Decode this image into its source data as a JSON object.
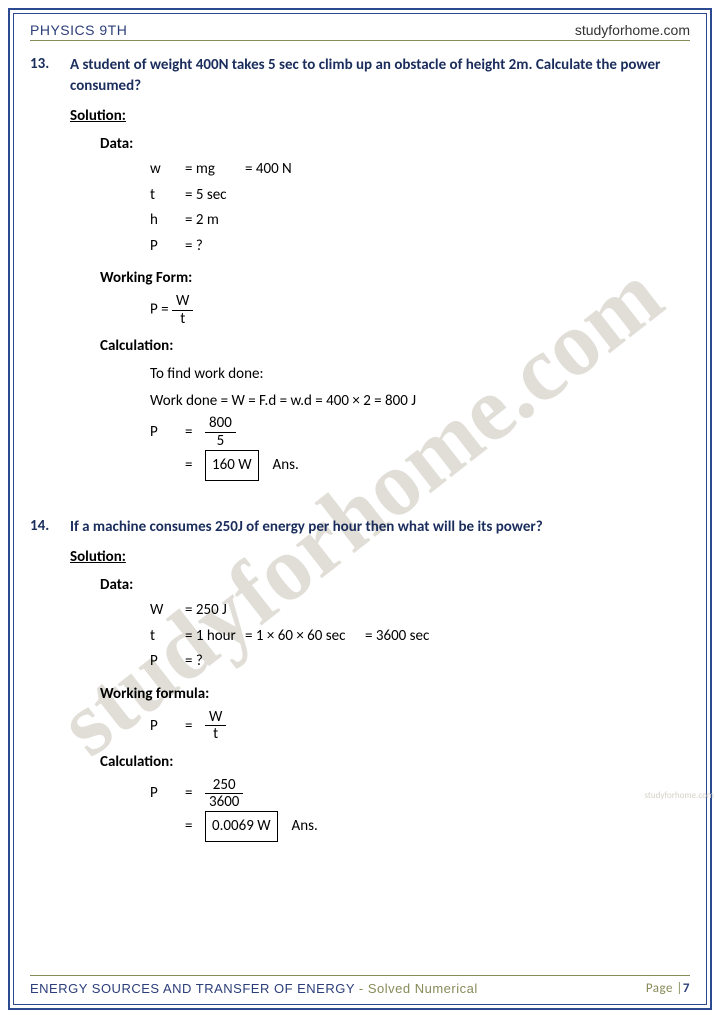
{
  "header": {
    "left": "PHYSICS 9TH",
    "right": "studyforhome.com"
  },
  "watermark": "studyforhome.com",
  "small_watermark": "studyforhome.com",
  "q13": {
    "num": "13.",
    "text": "A student of weight 400N takes 5 sec to climb up an obstacle of height 2m. Calculate the power consumed?",
    "solution_label": "Solution:",
    "data_label": "Data:",
    "data": {
      "r1": {
        "var": "w",
        "eq": "= mg",
        "val": "= 400 N"
      },
      "r2": {
        "var": "t",
        "eq": "= 5 sec"
      },
      "r3": {
        "var": "h",
        "eq": "= 2 m"
      },
      "r4": {
        "var": "P",
        "eq": "= ?"
      }
    },
    "working_label": "Working Form:",
    "formula": {
      "lhs": "P =",
      "num": "W",
      "den": "t"
    },
    "calc_label": "Calculation:",
    "calc": {
      "find": "To find work done:",
      "work": "Work done = W = F.d = w.d = 400 × 2   =  800 J",
      "p_var": "P",
      "p_eq": "=",
      "p_num": "800",
      "p_den": "5",
      "res_eq": "=",
      "result": "160 W",
      "ans": "Ans."
    }
  },
  "q14": {
    "num": "14.",
    "text": "If a machine consumes 250J of energy per hour then what will be its power?",
    "solution_label": "Solution:",
    "data_label": "Data:",
    "data": {
      "r1": {
        "var": "W",
        "eq": "= 250 J"
      },
      "r2": {
        "var": "t",
        "eq": "= 1 hour",
        "eq2": "= 1 × 60 × 60 sec",
        "eq3": "= 3600 sec"
      },
      "r3": {
        "var": "P",
        "eq": "= ?"
      }
    },
    "working_label": "Working formula:",
    "formula": {
      "lhs_var": "P",
      "lhs_eq": "=",
      "num": "W",
      "den": "t"
    },
    "calc_label": "Calculation:",
    "calc": {
      "p_var": "P",
      "p_eq": "=",
      "p_num": "250",
      "p_den": "3600",
      "res_eq": "=",
      "result": "0.0069 W",
      "ans": "Ans."
    }
  },
  "footer": {
    "chapter": "ENERGY SOURCES AND TRANSFER OF ENERGY",
    "sep": " - ",
    "type": "Solved Numerical",
    "page_label": "Page |",
    "page_num": "7"
  }
}
